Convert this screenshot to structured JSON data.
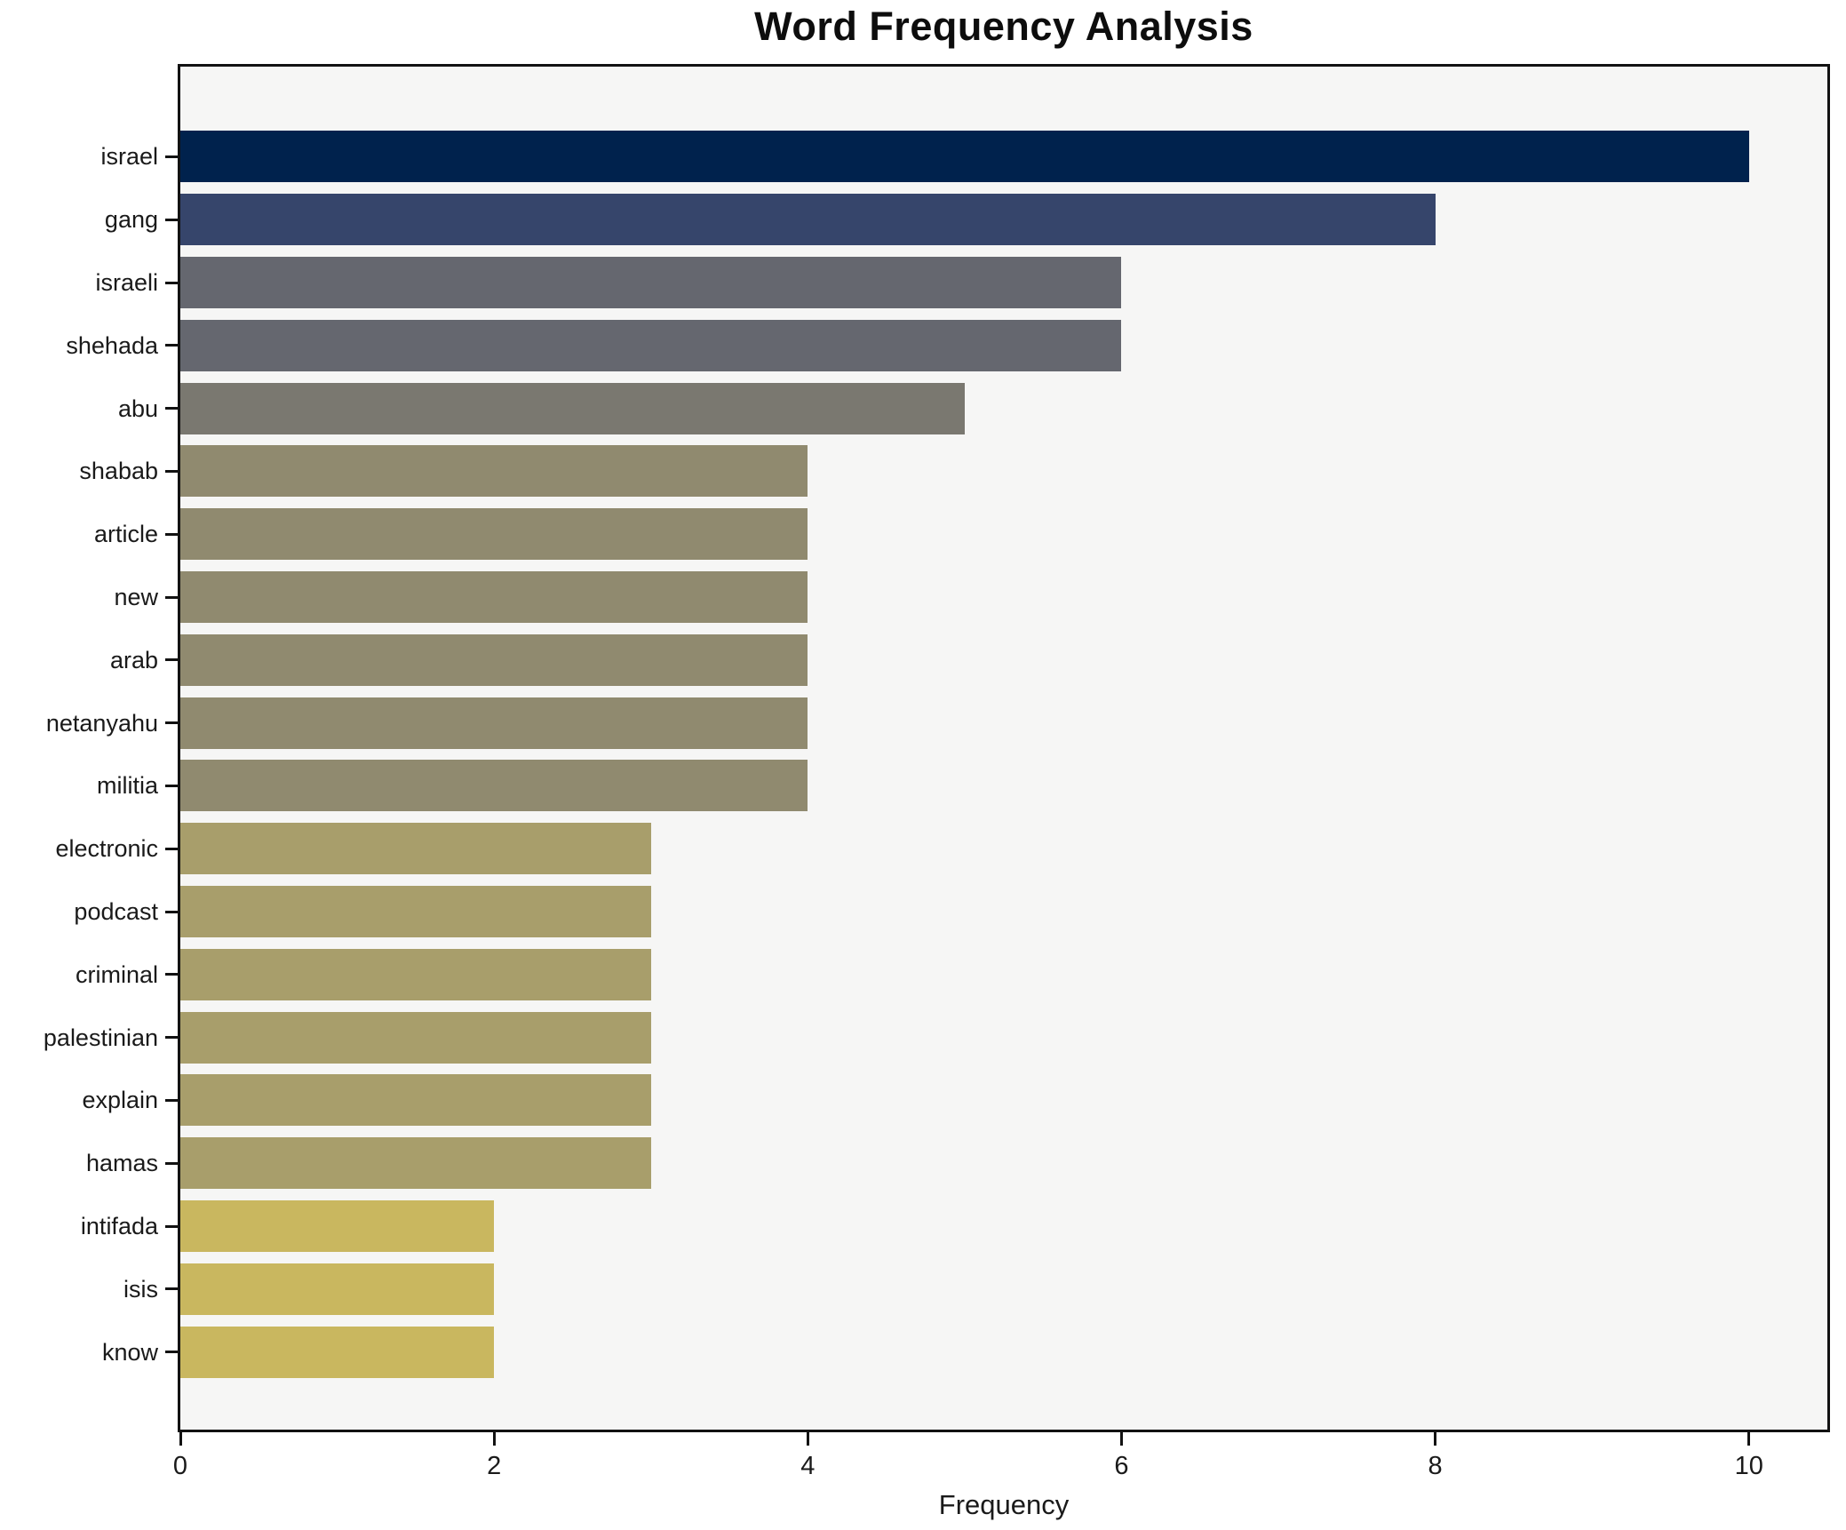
{
  "title": "Word Frequency Analysis",
  "chart_data": {
    "type": "bar",
    "orientation": "horizontal",
    "title": "Word Frequency Analysis",
    "xlabel": "Frequency",
    "ylabel": "",
    "categories": [
      "israel",
      "gang",
      "israeli",
      "shehada",
      "abu",
      "shabab",
      "article",
      "new",
      "arab",
      "netanyahu",
      "militia",
      "electronic",
      "podcast",
      "criminal",
      "palestinian",
      "explain",
      "hamas",
      "intifada",
      "isis",
      "know"
    ],
    "values": [
      10,
      8,
      6,
      6,
      5,
      4,
      4,
      4,
      4,
      4,
      4,
      3,
      3,
      3,
      3,
      3,
      3,
      2,
      2,
      2
    ],
    "bar_colors": [
      "#00224D",
      "#36456B",
      "#65676F",
      "#65676F",
      "#7A7870",
      "#908A6F",
      "#908A6F",
      "#908A6F",
      "#908A6F",
      "#908A6F",
      "#908A6F",
      "#A89E6B",
      "#A89E6B",
      "#A89E6B",
      "#A89E6B",
      "#A89E6B",
      "#A89E6B",
      "#C9B75F",
      "#C9B75F",
      "#C9B75F"
    ],
    "xlim": [
      0,
      10.5
    ],
    "xticks": [
      0,
      2,
      4,
      6,
      8,
      10
    ],
    "xtick_labels": [
      "0",
      "2",
      "4",
      "6",
      "8",
      "10"
    ],
    "grid": false,
    "legend": false,
    "plot_background": "#F6F6F5",
    "figure_background": "#FFFFFF",
    "spine_color": "#121212"
  }
}
